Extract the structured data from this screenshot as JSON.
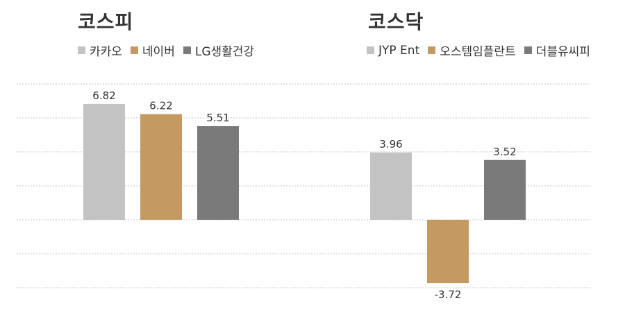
{
  "chart_data": [
    {
      "type": "bar",
      "title": "코스피",
      "categories": [
        "카카오",
        "네이버",
        "LG생활건강"
      ],
      "values": [
        6.82,
        6.22,
        5.51
      ],
      "value_labels": [
        "6.82",
        "6.22",
        "5.51"
      ],
      "colors": [
        "#c3c3c3",
        "#c49a62",
        "#7a7a7a"
      ],
      "legend_position": "top-left",
      "grid": true,
      "ylim": [
        -4,
        8
      ]
    },
    {
      "type": "bar",
      "title": "코스닥",
      "categories": [
        "JYP Ent",
        "오스템임플란트",
        "더블유씨피"
      ],
      "values": [
        3.96,
        -3.72,
        3.52
      ],
      "value_labels": [
        "3.96",
        "-3.72",
        "3.52"
      ],
      "colors": [
        "#c3c3c3",
        "#c49a62",
        "#7a7a7a"
      ],
      "legend_position": "top-left",
      "grid": true,
      "ylim": [
        -4,
        8
      ]
    }
  ]
}
